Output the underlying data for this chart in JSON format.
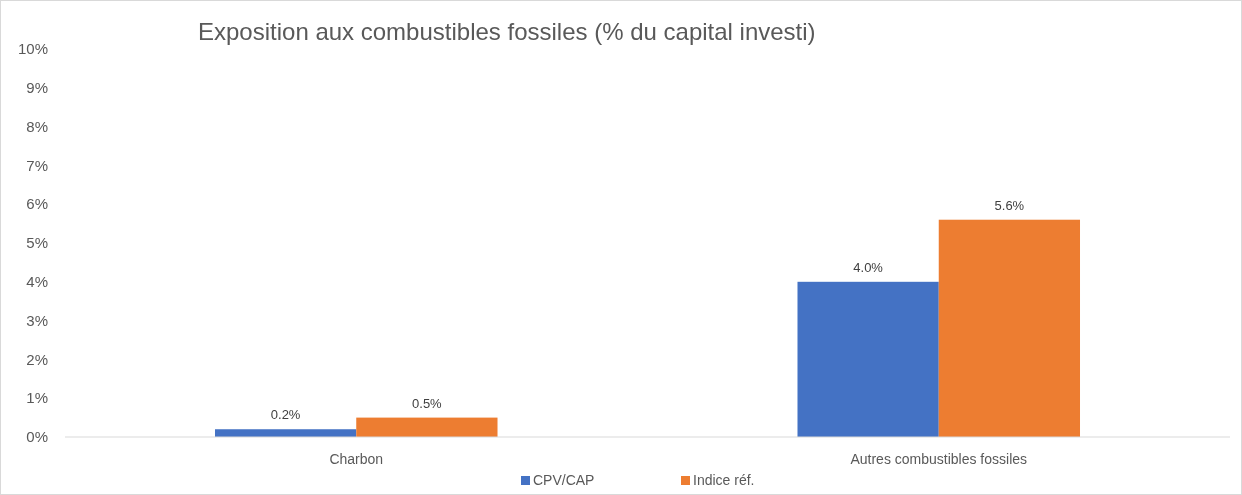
{
  "chart_data": {
    "type": "bar",
    "title": "Exposition aux combustibles fossiles (% du capital investi)",
    "categories": [
      "Charbon",
      "Autres combustibles fossiles"
    ],
    "series": [
      {
        "name": "CPV/CAP",
        "color": "#4472c4",
        "values": [
          0.2,
          4.0
        ],
        "value_labels": [
          "0.2%",
          "4.0%"
        ]
      },
      {
        "name": "Indice réf.",
        "color": "#ed7d31",
        "values": [
          0.5,
          5.6
        ],
        "value_labels": [
          "0.5%",
          "5.6%"
        ]
      }
    ],
    "ylim": [
      0,
      10
    ],
    "yticks": [
      {
        "value": 0,
        "label": "0%"
      },
      {
        "value": 1,
        "label": "1%"
      },
      {
        "value": 2,
        "label": "2%"
      },
      {
        "value": 3,
        "label": "3%"
      },
      {
        "value": 4,
        "label": "4%"
      },
      {
        "value": 5,
        "label": "5%"
      },
      {
        "value": 6,
        "label": "6%"
      },
      {
        "value": 7,
        "label": "7%"
      },
      {
        "value": 8,
        "label": "8%"
      },
      {
        "value": 9,
        "label": "9%"
      },
      {
        "value": 10,
        "label": "10%"
      }
    ],
    "legend": "bottom"
  }
}
